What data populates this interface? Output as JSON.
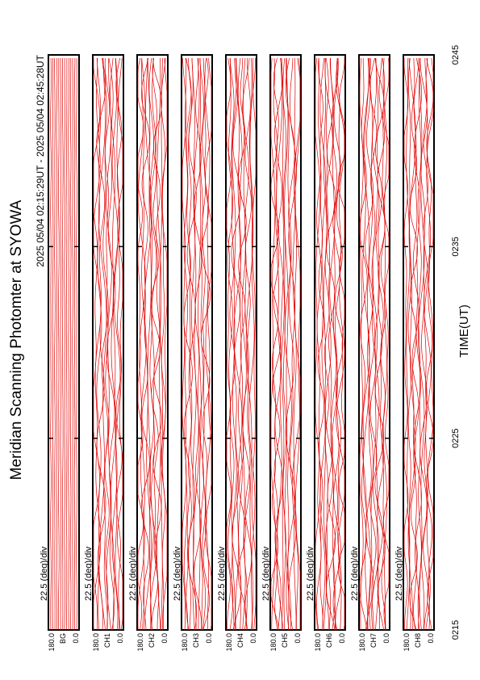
{
  "header": {
    "title": "Meridian Scanning Photomter at SYOWA",
    "subtitle": "2025 05/04 02:15:29UT - 2025 05/04 02:45:28UT"
  },
  "axis": {
    "label": "TIME(UT)",
    "ticks": [
      "0215",
      "0225",
      "0235",
      "0245"
    ]
  },
  "panels": [
    {
      "scale": "22.5 (deg)/div",
      "top": "180.0",
      "bottom": "0.0",
      "channel": "BG"
    },
    {
      "scale": "22.5 (deg)/div",
      "top": "180.0",
      "bottom": "0.0",
      "channel": "CH1"
    },
    {
      "scale": "22.5 (deg)/div",
      "top": "180.0",
      "bottom": "0.0",
      "channel": "CH2"
    },
    {
      "scale": "22.5 (deg)/div",
      "top": "180.0",
      "bottom": "0.0",
      "channel": "CH3"
    },
    {
      "scale": "22.5 (deg)/div",
      "top": "180.0",
      "bottom": "0.0",
      "channel": "CH4"
    },
    {
      "scale": "22.5 (deg)/div",
      "top": "180.0",
      "bottom": "0.0",
      "channel": "CH5"
    },
    {
      "scale": "22.5 (deg)/div",
      "top": "180.0",
      "bottom": "0.0",
      "channel": "CH6"
    },
    {
      "scale": "22.5 (deg)/div",
      "top": "180.0",
      "bottom": "0.0",
      "channel": "CH7"
    },
    {
      "scale": "22.5 (deg)/div",
      "top": "180.0",
      "bottom": "0.0",
      "channel": "CH8"
    }
  ]
}
